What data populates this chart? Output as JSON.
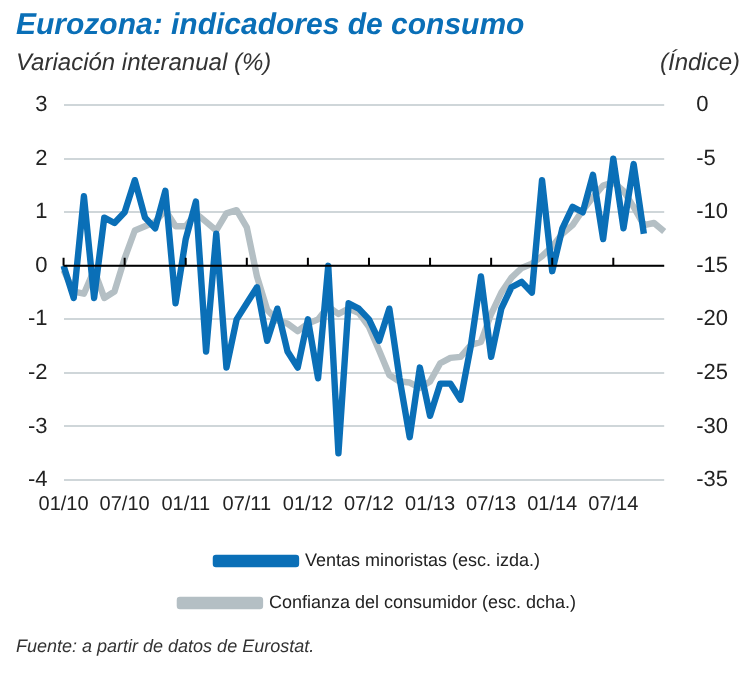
{
  "chart_data": {
    "type": "line",
    "title": "Eurozona: indicadores de consumo",
    "ylabel": "Variación interanual (%)",
    "y2label": "(Índice)",
    "categories": [
      "01/10",
      null,
      null,
      null,
      null,
      null,
      "07/10",
      null,
      null,
      null,
      null,
      null,
      "01/11",
      null,
      null,
      null,
      null,
      null,
      "07/11",
      null,
      null,
      null,
      null,
      null,
      "01/12",
      null,
      null,
      null,
      null,
      null,
      "07/12",
      null,
      null,
      null,
      null,
      null,
      "01/13",
      null,
      null,
      null,
      null,
      null,
      "07/13",
      null,
      null,
      null,
      null,
      null,
      "01/14",
      null,
      null,
      null,
      null,
      null,
      "07/14",
      null,
      null,
      null,
      null,
      null
    ],
    "series": [
      {
        "name": "Ventas minoristas (esc. izda.)",
        "color": "#0a6fb7",
        "values": [
          0,
          -0.6,
          1.3,
          -0.6,
          0.9,
          0.8,
          1.0,
          1.6,
          0.9,
          0.7,
          1.4,
          -0.7,
          0.5,
          1.2,
          -1.6,
          0.6,
          -1.9,
          -1.0,
          -0.7,
          -0.4,
          -1.4,
          -0.8,
          -1.6,
          -1.9,
          -1.0,
          -2.1,
          0.0,
          -3.5,
          -0.7,
          -0.8,
          -1.0,
          -1.4,
          -0.8,
          -2.1,
          -3.2,
          -1.9,
          -2.8,
          -2.2,
          -2.2,
          -2.5,
          -1.5,
          -0.2,
          -1.7,
          -0.8,
          -0.4,
          -0.3,
          -0.5,
          1.6,
          -0.1,
          0.7,
          1.1,
          1.0,
          1.7,
          0.5,
          2.0,
          0.7,
          1.9,
          0.6,
          null,
          null
        ]
      },
      {
        "name": "Confianza del consumidor (esc. dcha.)",
        "color": "#b4bfc4",
        "axis": "y2",
        "values": [
          -15.4,
          -17.4,
          -17.6,
          -15.4,
          -18.0,
          -17.4,
          -14.3,
          -11.7,
          -11.3,
          -10.9,
          -9.8,
          -11.3,
          -11.3,
          -10.1,
          -10.9,
          -11.7,
          -10.1,
          -9.8,
          -11.4,
          -16.0,
          -19.1,
          -20.1,
          -20.4,
          -21.1,
          -20.4,
          -20.0,
          -18.8,
          -19.5,
          -19.0,
          -19.4,
          -20.7,
          -22.9,
          -25.2,
          -25.8,
          -25.9,
          -26.4,
          -25.8,
          -24.1,
          -23.6,
          -23.5,
          -22.4,
          -22.1,
          -19.5,
          -17.5,
          -16.1,
          -15.2,
          -14.8,
          -14.1,
          -13.2,
          -12.0,
          -11.2,
          -9.8,
          -8.6,
          -7.5,
          -7.2,
          -8.0,
          -9.5,
          -11.2,
          -11.0,
          -11.8
        ]
      }
    ],
    "ylim": [
      -4,
      3
    ],
    "yticks": [
      -4,
      -3,
      -2,
      -1,
      0,
      1,
      2,
      3
    ],
    "y2lim": [
      -35,
      0
    ],
    "y2ticks": [
      -35,
      -30,
      -25,
      -20,
      -15,
      -10,
      -5,
      0
    ],
    "ref_lines": [
      {
        "axis": "y",
        "value": 0,
        "color": "#000000"
      }
    ],
    "grid": "y",
    "legend": "bottom",
    "marker": "none",
    "line_style": "solid",
    "annotations": [
      "Fuente: a partir de datos de Eurostat."
    ]
  }
}
